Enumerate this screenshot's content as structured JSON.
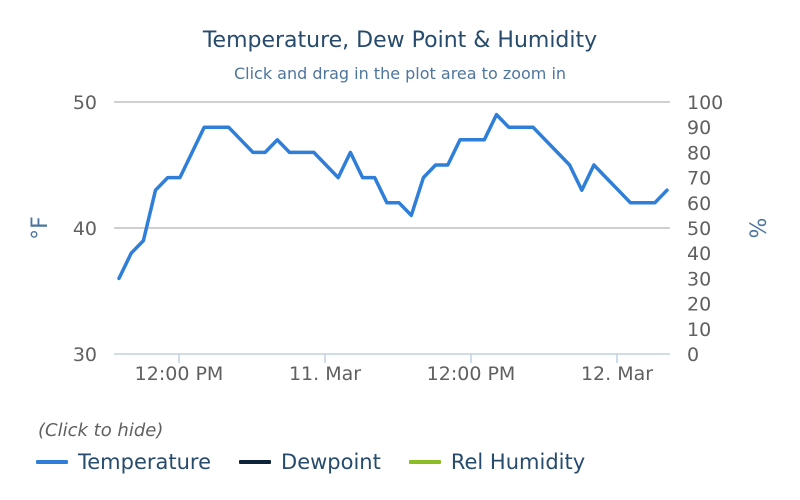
{
  "chart_data": {
    "type": "line",
    "title": "Temperature, Dew Point & Humidity",
    "subtitle": "Click and drag in the plot area to zoom in",
    "y_left": {
      "label": "°F",
      "ticks": [
        "50",
        "40",
        "30"
      ],
      "range": [
        30,
        50
      ]
    },
    "y_right": {
      "label": "%",
      "ticks": [
        "100",
        "90",
        "80",
        "70",
        "60",
        "50",
        "40",
        "30",
        "20",
        "10",
        "0"
      ],
      "range": [
        0,
        100
      ]
    },
    "x_ticks": [
      "12:00 PM",
      "11. Mar",
      "12:00 PM",
      "12. Mar"
    ],
    "grid": true,
    "legend_position": "bottom-left",
    "legend_hint": "(Click to hide)",
    "series": [
      {
        "name": "Temperature",
        "color": "#2f7ed8",
        "axis": "left",
        "values": [
          36,
          38,
          39,
          43,
          44,
          44,
          46,
          48,
          48,
          48,
          47,
          46,
          46,
          47,
          46,
          46,
          46,
          45,
          44,
          46,
          44,
          44,
          42,
          42,
          41,
          44,
          45,
          45,
          47,
          47,
          47,
          49,
          48,
          48,
          48,
          47,
          46,
          45,
          43,
          45,
          44,
          43,
          42,
          42,
          42,
          43
        ]
      },
      {
        "name": "Dewpoint",
        "color": "#0d233a",
        "axis": "left",
        "values": []
      },
      {
        "name": "Rel Humidity",
        "color": "#8bbc21",
        "axis": "right",
        "values": []
      }
    ]
  }
}
